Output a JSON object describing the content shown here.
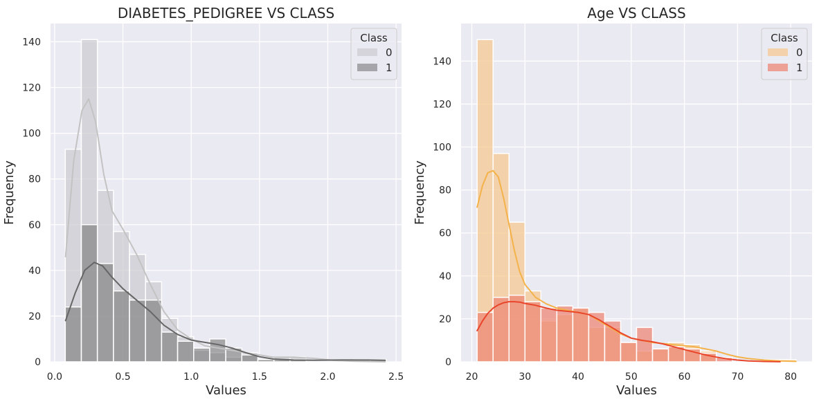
{
  "chart_data": [
    {
      "type": "histogram",
      "title": "DIABETES_PEDIGREE VS CLASS",
      "xlabel": "Values",
      "ylabel": "Frequency",
      "xlim": [
        -0.03,
        2.54
      ],
      "ylim": [
        0,
        148
      ],
      "xticks": [
        0.0,
        0.5,
        1.0,
        1.5,
        2.0,
        2.5
      ],
      "xtick_labels": [
        "0.0",
        "0.5",
        "1.0",
        "1.5",
        "2.0",
        "2.5"
      ],
      "yticks": [
        0,
        20,
        40,
        60,
        80,
        100,
        120,
        140
      ],
      "ytick_labels": [
        "0",
        "20",
        "40",
        "60",
        "80",
        "100",
        "120",
        "140"
      ],
      "grid": true,
      "legend": {
        "title": "Class",
        "position": "top-right"
      },
      "bin_start": 0.078,
      "bin_width": 0.1175,
      "series": [
        {
          "name": "0",
          "color": "#c8c8cc",
          "values": [
            93,
            141,
            75,
            57,
            47,
            35,
            19,
            11,
            5,
            4,
            2,
            4,
            1,
            2,
            2,
            0,
            0,
            0,
            0,
            0
          ],
          "kde": [
            [
              0.08,
              46
            ],
            [
              0.14,
              88
            ],
            [
              0.2,
              110
            ],
            [
              0.25,
              115
            ],
            [
              0.3,
              105
            ],
            [
              0.36,
              82
            ],
            [
              0.42,
              66
            ],
            [
              0.5,
              58
            ],
            [
              0.6,
              47
            ],
            [
              0.7,
              34
            ],
            [
              0.8,
              22
            ],
            [
              0.9,
              14
            ],
            [
              1.0,
              10
            ],
            [
              1.1,
              7
            ],
            [
              1.2,
              6
            ],
            [
              1.3,
              5
            ],
            [
              1.4,
              4
            ],
            [
              1.5,
              3
            ],
            [
              1.6,
              2
            ],
            [
              1.75,
              2
            ],
            [
              1.9,
              1.5
            ],
            [
              2.05,
              0.6
            ],
            [
              2.2,
              0.2
            ],
            [
              2.42,
              0
            ]
          ]
        },
        {
          "name": "1",
          "color": "#6e6e6e",
          "values": [
            24,
            60,
            43,
            31,
            27,
            27,
            13,
            9,
            6,
            10,
            6,
            3,
            1,
            1,
            1,
            0,
            0,
            0,
            1,
            1
          ],
          "kde": [
            [
              0.08,
              18
            ],
            [
              0.15,
              30
            ],
            [
              0.22,
              40
            ],
            [
              0.29,
              43.5
            ],
            [
              0.35,
              42
            ],
            [
              0.42,
              37
            ],
            [
              0.5,
              32
            ],
            [
              0.6,
              27
            ],
            [
              0.7,
              22
            ],
            [
              0.8,
              16
            ],
            [
              0.9,
              12
            ],
            [
              1.0,
              9.5
            ],
            [
              1.1,
              8.5
            ],
            [
              1.2,
              7.5
            ],
            [
              1.3,
              6
            ],
            [
              1.4,
              4
            ],
            [
              1.5,
              2.2
            ],
            [
              1.6,
              1.2
            ],
            [
              1.75,
              0.8
            ],
            [
              1.9,
              0.7
            ],
            [
              2.1,
              0.8
            ],
            [
              2.3,
              0.8
            ],
            [
              2.42,
              0.7
            ]
          ]
        }
      ]
    },
    {
      "type": "histogram",
      "title": "Age VS CLASS",
      "xlabel": "Values",
      "ylabel": "Frequency",
      "xlim": [
        17.98,
        84.02
      ],
      "ylim": [
        0,
        157.5
      ],
      "xticks": [
        20,
        30,
        40,
        50,
        60,
        70,
        80
      ],
      "xtick_labels": [
        "20",
        "30",
        "40",
        "50",
        "60",
        "70",
        "80"
      ],
      "yticks": [
        0,
        20,
        40,
        60,
        80,
        100,
        120,
        140
      ],
      "ytick_labels": [
        "0",
        "20",
        "40",
        "60",
        "80",
        "100",
        "120",
        "140"
      ],
      "grid": true,
      "legend": {
        "title": "Class",
        "position": "top-right"
      },
      "bin_start": 21,
      "bin_width": 3,
      "series": [
        {
          "name": "0",
          "color": "#f5c892",
          "values": [
            150,
            97,
            65,
            33,
            19,
            22,
            25,
            16,
            16,
            9,
            5,
            6,
            9,
            8,
            5,
            0,
            0,
            0,
            1,
            1
          ],
          "kde": [
            [
              21,
              72
            ],
            [
              22,
              82
            ],
            [
              23,
              88
            ],
            [
              24,
              89
            ],
            [
              25,
              86
            ],
            [
              26,
              76
            ],
            [
              27,
              64
            ],
            [
              28,
              52
            ],
            [
              29,
              42
            ],
            [
              30,
              36
            ],
            [
              32,
              30
            ],
            [
              34,
              27
            ],
            [
              36,
              25
            ],
            [
              38,
              24
            ],
            [
              40,
              23
            ],
            [
              42,
              22
            ],
            [
              44,
              19
            ],
            [
              46,
              16
            ],
            [
              48,
              13
            ],
            [
              50,
              11
            ],
            [
              52,
              10
            ],
            [
              54,
              9
            ],
            [
              56,
              8.5
            ],
            [
              58,
              8
            ],
            [
              60,
              7.5
            ],
            [
              62,
              7
            ],
            [
              64,
              6
            ],
            [
              66,
              5
            ],
            [
              68,
              3.5
            ],
            [
              70,
              2.3
            ],
            [
              72,
              1.5
            ],
            [
              75,
              0.8
            ],
            [
              78,
              0.4
            ],
            [
              81,
              0.2
            ]
          ]
        },
        {
          "name": "1",
          "color": "#ee8877",
          "values": [
            23,
            30,
            31,
            28,
            25,
            26,
            25,
            23,
            19,
            9,
            16,
            6,
            7,
            6,
            4,
            2,
            0,
            0,
            0,
            0
          ],
          "kde": [
            [
              21,
              14.5
            ],
            [
              22,
              19
            ],
            [
              23,
              22.5
            ],
            [
              24,
              25
            ],
            [
              25,
              26.5
            ],
            [
              26,
              27.5
            ],
            [
              27,
              28
            ],
            [
              28,
              28
            ],
            [
              29,
              27.8
            ],
            [
              30,
              27.2
            ],
            [
              32,
              26.3
            ],
            [
              34,
              25
            ],
            [
              36,
              24
            ],
            [
              38,
              23.5
            ],
            [
              40,
              23
            ],
            [
              42,
              22
            ],
            [
              44,
              19.5
            ],
            [
              46,
              16.5
            ],
            [
              48,
              13.5
            ],
            [
              50,
              11
            ],
            [
              52,
              10
            ],
            [
              54,
              9.3
            ],
            [
              56,
              8.3
            ],
            [
              58,
              7
            ],
            [
              60,
              5.7
            ],
            [
              62,
              4.4
            ],
            [
              64,
              3.2
            ],
            [
              66,
              2.2
            ],
            [
              68,
              1.4
            ],
            [
              70,
              0.8
            ],
            [
              72,
              0.4
            ],
            [
              75,
              0.15
            ],
            [
              78,
              0.03
            ]
          ]
        }
      ]
    }
  ]
}
